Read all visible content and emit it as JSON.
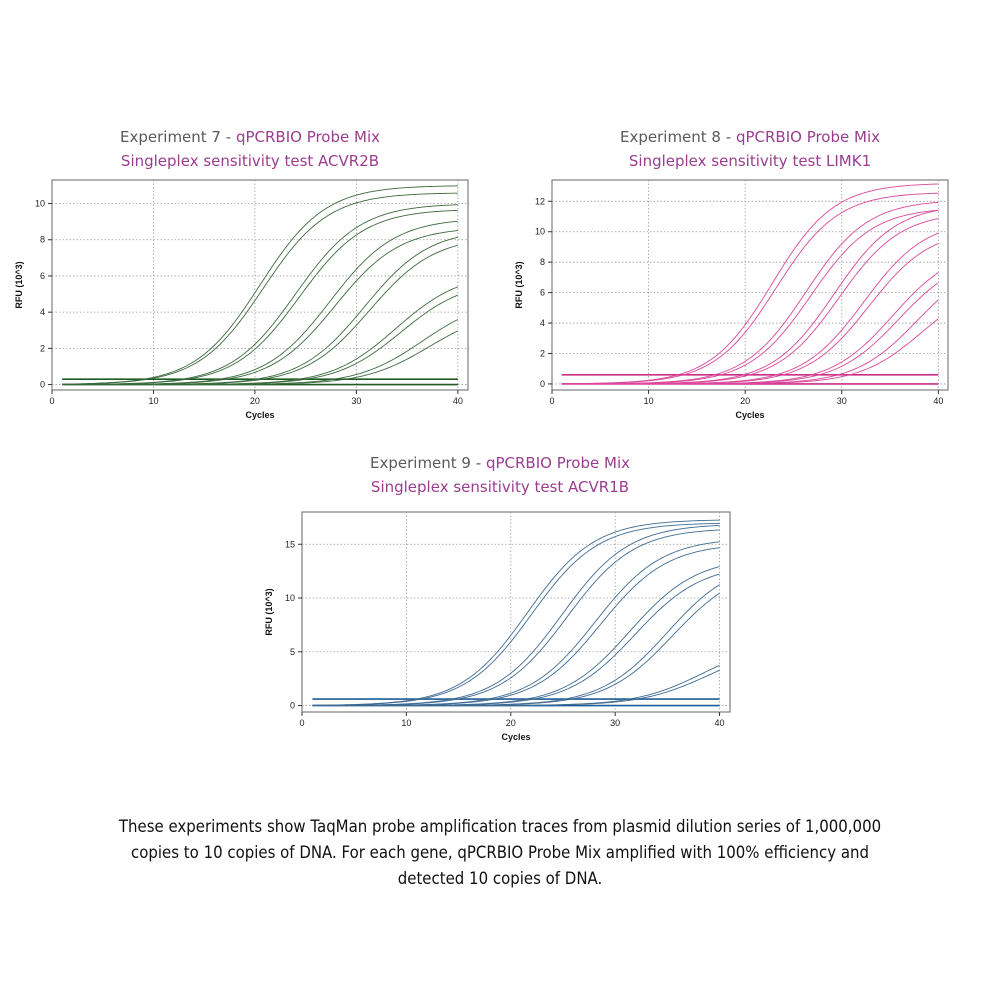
{
  "chart_data": [
    {
      "type": "line",
      "title_prefix": "Experiment 7 - ",
      "title_mix": "qPCRBIO Probe Mix",
      "subtitle": "Singleplex sensitivity test ACVR2B",
      "xlabel": "Cycles",
      "ylabel": "RFU (10^3)",
      "xlim": [
        0,
        41
      ],
      "ylim": [
        -0.3,
        11.3
      ],
      "xticks": [
        0,
        10,
        20,
        30,
        40
      ],
      "yticks": [
        0,
        2,
        4,
        6,
        8,
        10
      ],
      "grid": true,
      "line_color": "#3d6b3f",
      "baseline_color": "#1e5c22",
      "baselines": [
        0.0,
        0.3
      ],
      "series": [
        {
          "ct": 20.5,
          "max": 11.0
        },
        {
          "ct": 20.8,
          "max": 10.6
        },
        {
          "ct": 24.0,
          "max": 10.0
        },
        {
          "ct": 24.4,
          "max": 9.7
        },
        {
          "ct": 27.4,
          "max": 9.2
        },
        {
          "ct": 27.9,
          "max": 8.7
        },
        {
          "ct": 30.8,
          "max": 8.6
        },
        {
          "ct": 31.3,
          "max": 8.2
        },
        {
          "ct": 33.9,
          "max": 6.2
        },
        {
          "ct": 34.4,
          "max": 5.8
        },
        {
          "ct": 36.5,
          "max": 4.8
        },
        {
          "ct": 37.2,
          "max": 4.2
        }
      ]
    },
    {
      "type": "line",
      "title_prefix": "Experiment 8 - ",
      "title_mix": "qPCRBIO Probe Mix",
      "subtitle": "Singleplex sensitivity test LIMK1",
      "xlabel": "Cycles",
      "ylabel": "RFU (10^3)",
      "xlim": [
        0,
        41
      ],
      "ylim": [
        -0.4,
        13.4
      ],
      "xticks": [
        0,
        10,
        20,
        30,
        40
      ],
      "yticks": [
        0,
        2,
        4,
        6,
        8,
        10,
        12
      ],
      "grid": true,
      "line_color": "#d9479a",
      "baseline_color": "#cc2f88",
      "baselines": [
        0.0,
        0.6
      ],
      "series": [
        {
          "ct": 22.8,
          "max": 13.2
        },
        {
          "ct": 23.2,
          "max": 12.6
        },
        {
          "ct": 26.3,
          "max": 12.1
        },
        {
          "ct": 26.8,
          "max": 11.6
        },
        {
          "ct": 29.2,
          "max": 11.8
        },
        {
          "ct": 29.7,
          "max": 11.3
        },
        {
          "ct": 32.3,
          "max": 10.8
        },
        {
          "ct": 32.8,
          "max": 10.2
        },
        {
          "ct": 35.3,
          "max": 9.0
        },
        {
          "ct": 35.9,
          "max": 8.5
        },
        {
          "ct": 37.8,
          "max": 8.3
        },
        {
          "ct": 38.3,
          "max": 6.8
        }
      ]
    },
    {
      "type": "line",
      "title_prefix": "Experiment 9 - ",
      "title_mix": "qPCRBIO Probe Mix",
      "subtitle": "Singleplex sensitivity test ACVR1B",
      "xlabel": "Cycles",
      "ylabel": "RFU (10^3)",
      "xlim": [
        0,
        41
      ],
      "ylim": [
        -0.6,
        18.0
      ],
      "xticks": [
        0,
        10,
        20,
        30,
        40
      ],
      "yticks": [
        0,
        5,
        10,
        15
      ],
      "grid": true,
      "line_color": "#3f6b94",
      "baseline_color": "#1f5c96",
      "baselines": [
        0.0,
        0.6
      ],
      "series": [
        {
          "ct": 21.6,
          "max": 17.3
        },
        {
          "ct": 22.0,
          "max": 17.0
        },
        {
          "ct": 24.9,
          "max": 16.9
        },
        {
          "ct": 25.4,
          "max": 16.5
        },
        {
          "ct": 28.1,
          "max": 15.6
        },
        {
          "ct": 28.6,
          "max": 15.1
        },
        {
          "ct": 31.4,
          "max": 13.8
        },
        {
          "ct": 31.9,
          "max": 13.2
        },
        {
          "ct": 35.0,
          "max": 13.6
        },
        {
          "ct": 35.5,
          "max": 13.0
        },
        {
          "ct": 38.4,
          "max": 6.0
        },
        {
          "ct": 38.9,
          "max": 5.6
        }
      ]
    }
  ],
  "caption": "These experiments show TaqMan probe amplification traces from plasmid dilution series of 1,000,000 copies to 10 copies of DNA. For each gene, qPCRBIO Probe Mix amplified with 100% efficiency and detected 10 copies of DNA."
}
